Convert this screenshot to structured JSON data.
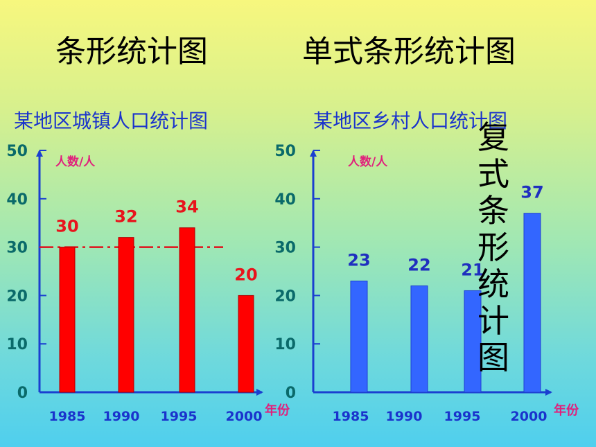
{
  "heading_left": "条形统计图",
  "heading_right": "单式条形统计图",
  "overlay_vertical": [
    "复",
    "式",
    "条",
    "形",
    "统",
    "计",
    "图"
  ],
  "chart_data": [
    {
      "type": "bar",
      "title": "某地区城镇人口统计图",
      "ylabel": "人数/人",
      "xlabel": "年份",
      "categories": [
        "1985",
        "1990",
        "1995",
        "2000"
      ],
      "values": [
        30,
        32,
        34,
        20
      ],
      "ylim": [
        0,
        50
      ],
      "yticks": [
        "0",
        "10",
        "20",
        "30",
        "40",
        "50"
      ],
      "bar_color": "#ff0000",
      "label_color": "#e8141c",
      "reference_line": 30,
      "reference_line_color": "#e0101a"
    },
    {
      "type": "bar",
      "title": "某地区乡村人口统计图",
      "ylabel": "人数/人",
      "xlabel": "年份",
      "categories": [
        "1985",
        "1990",
        "1995",
        "2000"
      ],
      "values": [
        23,
        22,
        21,
        37
      ],
      "value_labels": [
        "23",
        "22",
        "21",
        "37"
      ],
      "ylim": [
        0,
        50
      ],
      "yticks": [
        "0",
        "10",
        "20",
        "30",
        "40",
        "50"
      ],
      "bar_color": "#3366ff",
      "label_color": "#1f2fbf"
    }
  ],
  "colors": {
    "axis": "#1a3fd0",
    "tick_label": "#0a6a6a",
    "category_label": "#1a33cc",
    "unit_label": "#e0207c"
  }
}
